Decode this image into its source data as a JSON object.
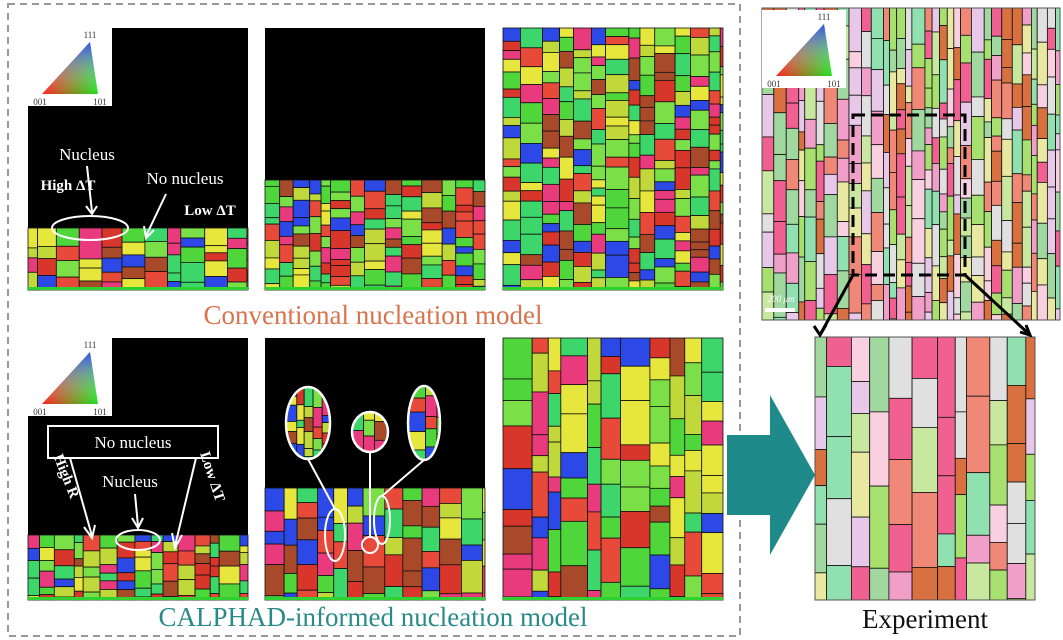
{
  "legend": {
    "top_label": "111",
    "left_label": "001",
    "right_label": "101"
  },
  "conventional": {
    "caption": "Conventional nucleation model",
    "annotations": {
      "nucleus": "Nucleus",
      "high_dt": "High ΔT",
      "no_nucleus": "No nucleus",
      "low_dt": "Low ΔT"
    }
  },
  "calphad": {
    "caption": "CALPHAD-informed nucleation model",
    "annotations": {
      "no_nucleus": "No nucleus",
      "nucleus": "Nucleus",
      "high_r": "High R",
      "low_dt": "Low ΔT"
    }
  },
  "experiment": {
    "caption": "Experiment",
    "scale_bar": "200 μm"
  }
}
